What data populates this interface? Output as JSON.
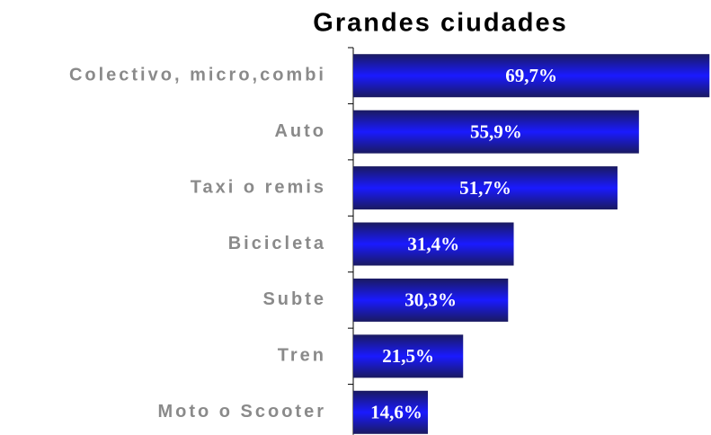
{
  "chart_data": {
    "type": "bar",
    "orientation": "horizontal",
    "title": "Grandes ciudades",
    "categories": [
      "Colectivo, micro,combi",
      "Auto",
      "Taxi o remis",
      "Bicicleta",
      "Subte",
      "Tren",
      "Moto o Scooter"
    ],
    "values": [
      69.7,
      55.9,
      51.7,
      31.4,
      30.3,
      21.5,
      14.6
    ],
    "value_labels": [
      "69,7%",
      "55,9%",
      "51,7%",
      "31,4%",
      "30,3%",
      "21,5%",
      "14,6%"
    ],
    "color": "#1a1aff",
    "xlim": [
      0,
      70
    ]
  }
}
